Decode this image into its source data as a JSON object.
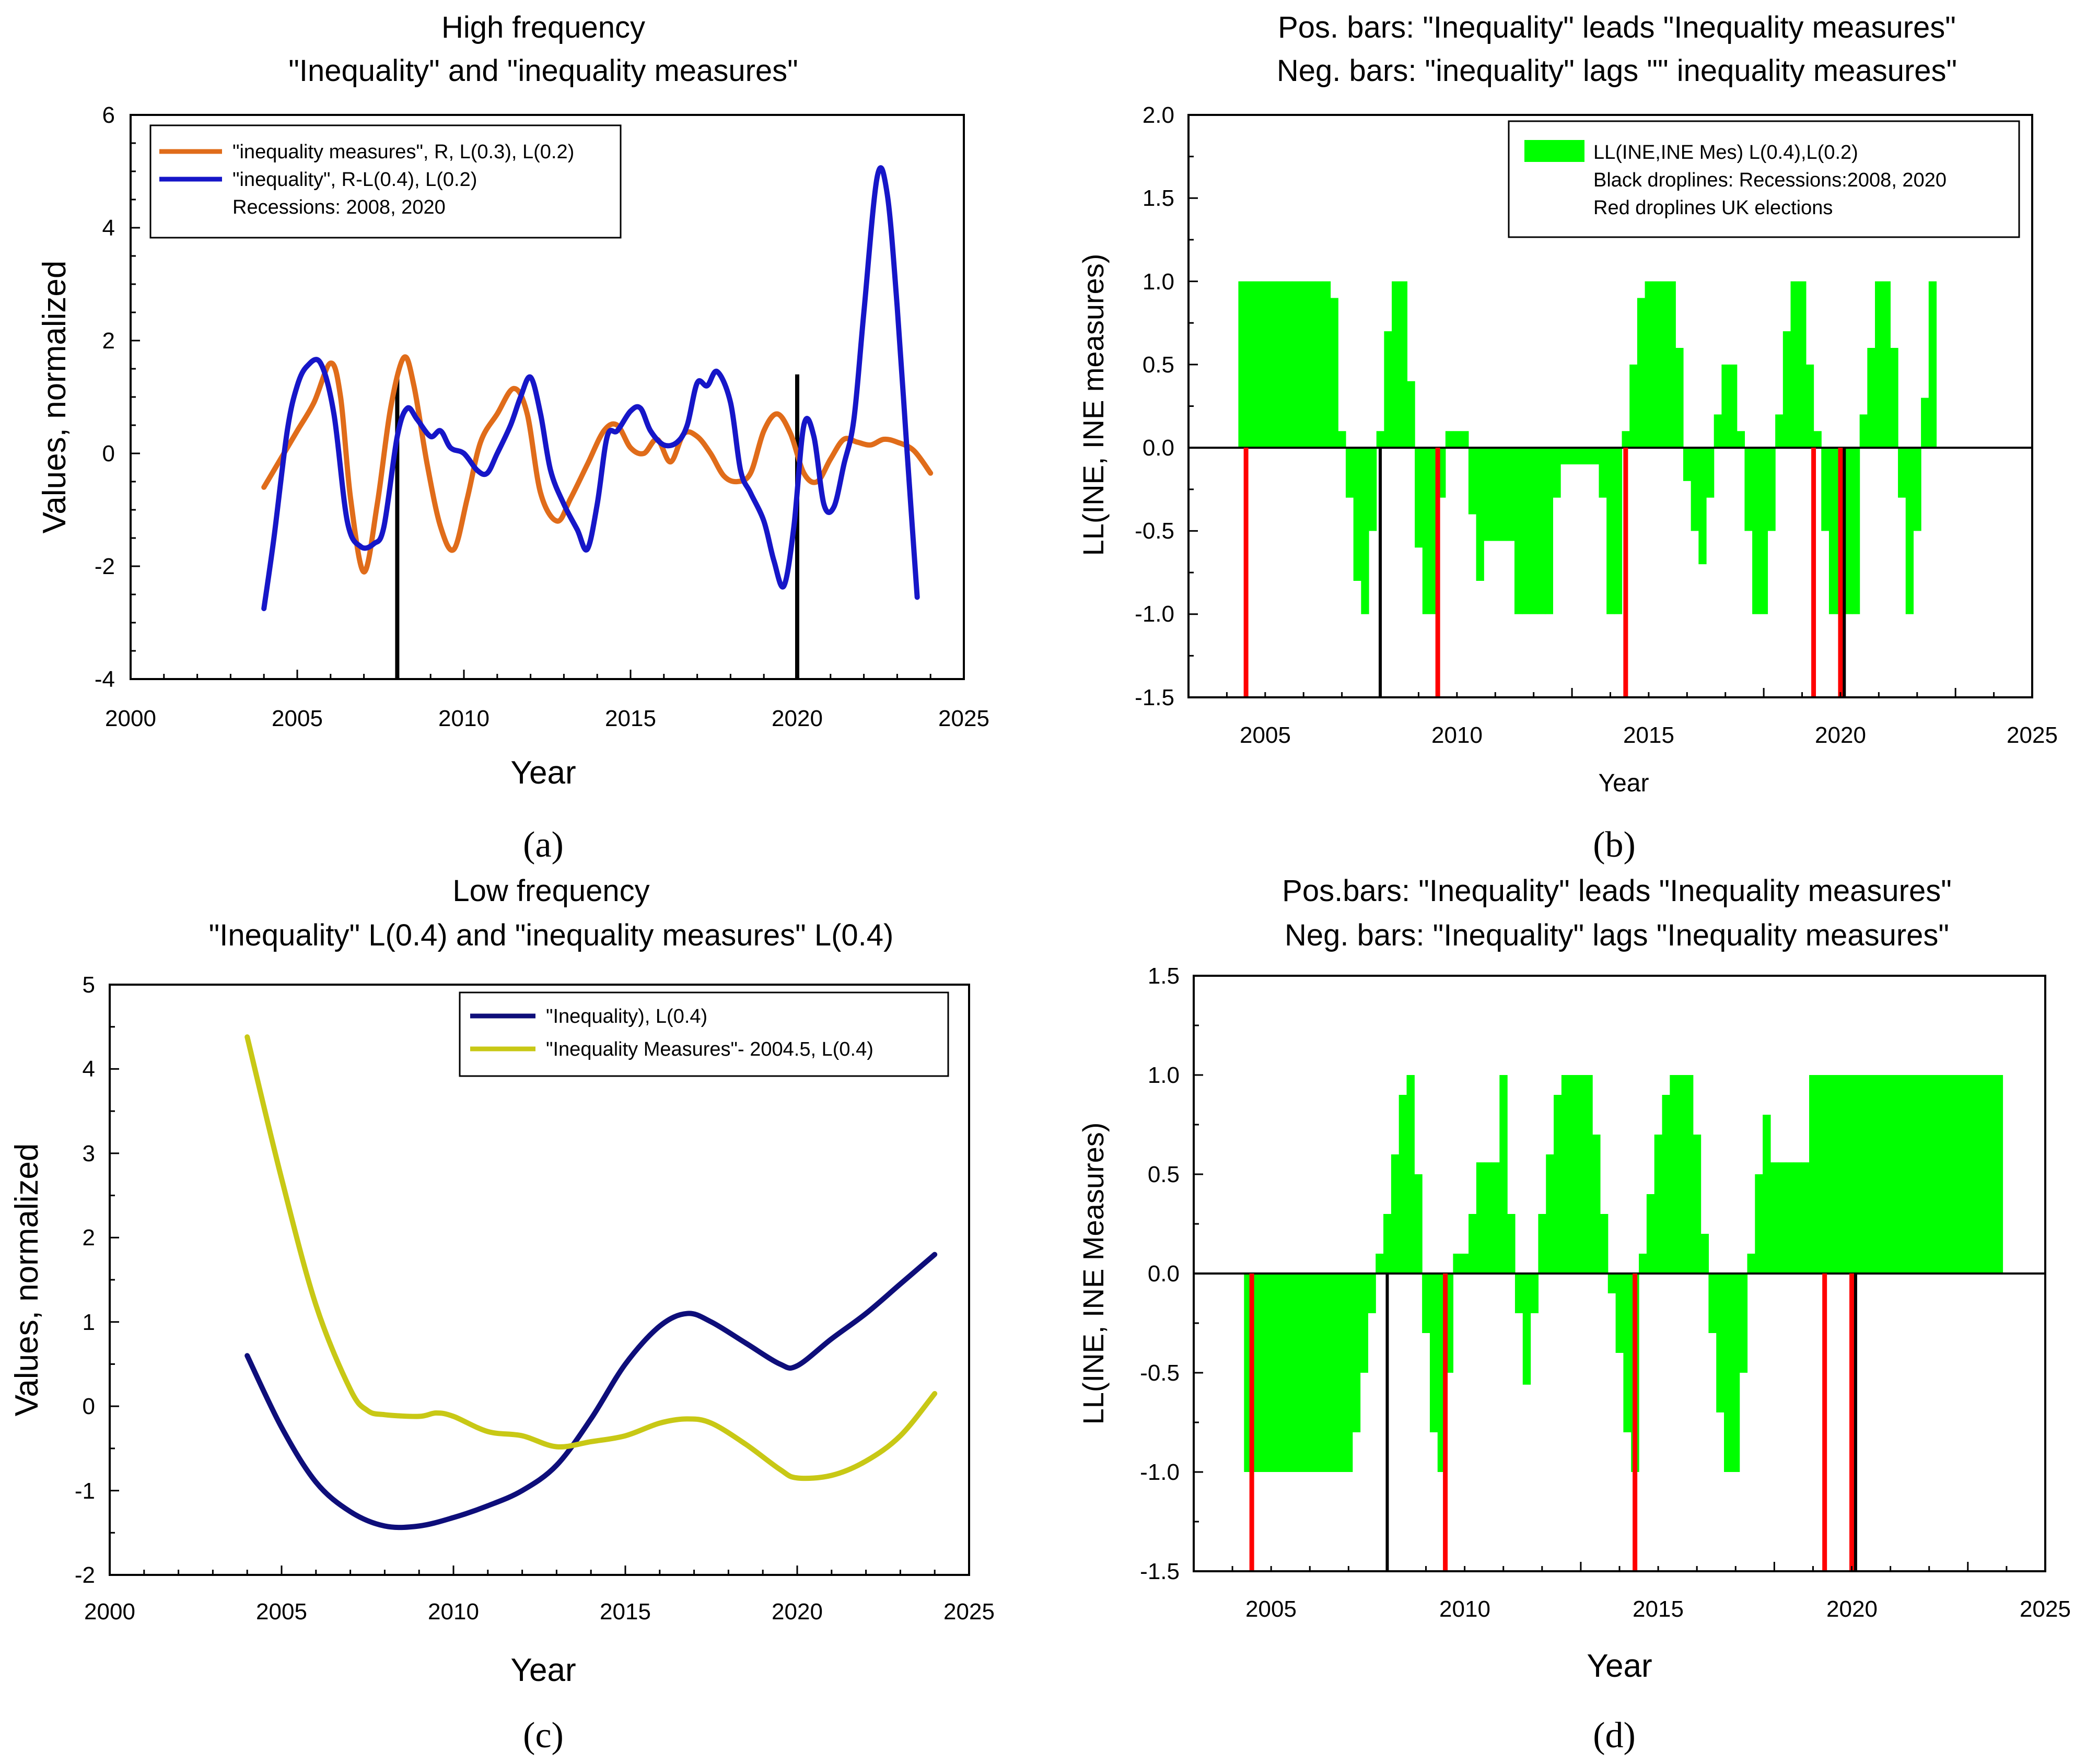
{
  "colors": {
    "inequality_measures_orange": "#E06C1A",
    "inequality_blue": "#1616C8",
    "inequality_navy": "#0E0E7A",
    "measures_yellow": "#C8C815",
    "bar_green": "#00FF00",
    "recession_black": "#000000",
    "election_red": "#FF0000"
  },
  "panels": {
    "a": {
      "label": "(a)",
      "title_line1": "High frequency",
      "title_line2": "\"Inequality\" and \"inequality measures\""
    },
    "b": {
      "label": "(b)",
      "title_line1": "Pos. bars: \"Inequality\" leads \"Inequality measures\"",
      "title_line2": "Neg. bars: \"inequality\" lags \"\" inequality measures\""
    },
    "c": {
      "label": "(c)",
      "title_line1": "Low frequency",
      "title_line2": "\"Inequality\" L(0.4) and \"inequality measures\" L(0.4)"
    },
    "d": {
      "label": "(d)",
      "title_line1": "Pos.bars: \"Inequality\" leads \"Inequality measures\"",
      "title_line2": "Neg. bars: \"Inequality\" lags \"Inequality measures\""
    }
  },
  "chart_data": [
    {
      "id": "a",
      "type": "line",
      "title": "High frequency \"Inequality\" and \"inequality measures\"",
      "xlabel": "Year",
      "ylabel": "Values, normalized",
      "xlim": [
        2000,
        2025
      ],
      "ylim": [
        -4,
        6
      ],
      "xticks": [
        "2000",
        "2005",
        "2010",
        "2015",
        "2020",
        "2025"
      ],
      "yticks": [
        "-4",
        "-2",
        "0",
        "2",
        "4",
        "6"
      ],
      "legend": {
        "position": "top-left",
        "entries": [
          "\"inequality measures\", R, L(0.3), L(0.2)",
          "\"inequality\", R-L(0.4), L(0.2)",
          "Recessions: 2008, 2020"
        ]
      },
      "series": [
        {
          "name": "\"inequality measures\", R, L(0.3), L(0.2)",
          "color": "#E06C1A",
          "x": [
            2004,
            2004.5,
            2005,
            2005.5,
            2006,
            2006.3,
            2006.6,
            2007,
            2007.4,
            2007.8,
            2008.2,
            2008.5,
            2008.9,
            2009.3,
            2009.7,
            2010.1,
            2010.5,
            2011,
            2011.5,
            2011.9,
            2012.3,
            2012.8,
            2013.2,
            2013.7,
            2014.2,
            2014.6,
            2015,
            2015.4,
            2015.8,
            2016.2,
            2016.6,
            2017,
            2017.4,
            2017.8,
            2018.2,
            2018.6,
            2019,
            2019.4,
            2019.8,
            2020.2,
            2020.6,
            2021,
            2021.4,
            2021.8,
            2022.2,
            2022.6,
            2023,
            2023.5,
            2024
          ],
          "y": [
            -0.6,
            -0.1,
            0.4,
            0.9,
            1.6,
            1.0,
            -0.8,
            -2.1,
            -0.9,
            0.8,
            1.7,
            1.2,
            -0.2,
            -1.3,
            -1.7,
            -0.8,
            0.2,
            0.7,
            1.15,
            0.7,
            -0.7,
            -1.2,
            -0.8,
            -0.2,
            0.4,
            0.5,
            0.1,
            0.0,
            0.25,
            -0.15,
            0.35,
            0.3,
            0.0,
            -0.4,
            -0.5,
            -0.35,
            0.4,
            0.7,
            0.35,
            -0.35,
            -0.5,
            -0.1,
            0.25,
            0.2,
            0.15,
            0.25,
            0.2,
            0.05,
            -0.35
          ]
        },
        {
          "name": "\"inequality\", R-L(0.4), L(0.2)",
          "color": "#1616C8",
          "x": [
            2004,
            2004.3,
            2004.7,
            2005,
            2005.3,
            2005.7,
            2006.1,
            2006.5,
            2006.9,
            2007.3,
            2007.6,
            2008,
            2008.3,
            2008.6,
            2009,
            2009.3,
            2009.6,
            2010,
            2010.4,
            2010.7,
            2011,
            2011.4,
            2011.7,
            2012,
            2012.3,
            2012.6,
            2013,
            2013.4,
            2013.7,
            2014,
            2014.3,
            2014.6,
            2015,
            2015.3,
            2015.6,
            2016,
            2016.4,
            2016.7,
            2017,
            2017.3,
            2017.6,
            2018,
            2018.3,
            2018.6,
            2019,
            2019.3,
            2019.6,
            2019.9,
            2020.2,
            2020.5,
            2020.8,
            2021.1,
            2021.4,
            2021.7,
            2022,
            2022.4,
            2022.7,
            2023,
            2023.3,
            2023.6
          ],
          "y": [
            -2.75,
            -1.5,
            0.4,
            1.2,
            1.55,
            1.6,
            0.7,
            -1.2,
            -1.65,
            -1.6,
            -1.3,
            0.3,
            0.8,
            0.6,
            0.3,
            0.4,
            0.1,
            0.0,
            -0.3,
            -0.35,
            0.0,
            0.5,
            1.0,
            1.35,
            0.7,
            -0.3,
            -0.9,
            -1.35,
            -1.7,
            -0.9,
            0.3,
            0.4,
            0.75,
            0.8,
            0.4,
            0.15,
            0.2,
            0.5,
            1.25,
            1.2,
            1.45,
            0.9,
            -0.3,
            -0.7,
            -1.2,
            -1.9,
            -2.35,
            -1.3,
            0.5,
            0.3,
            -0.9,
            -0.95,
            -0.2,
            0.6,
            2.5,
            4.9,
            4.6,
            2.6,
            0.0,
            -2.55
          ]
        }
      ],
      "recessions": [
        2008,
        2020
      ],
      "recession_tops": [
        1.4,
        1.4
      ]
    },
    {
      "id": "b",
      "type": "bar",
      "title": "Pos. bars: \"Inequality\" leads \"Inequality measures\" Neg. bars: \"inequality\" lags \"\" inequality measures\"",
      "xlabel": "Year",
      "ylabel": "LL(INE, INE measures)",
      "xlim": [
        2003,
        2025
      ],
      "ylim": [
        -1.5,
        2.0
      ],
      "xticks": [
        "2005",
        "2010",
        "2015",
        "2020",
        "2025"
      ],
      "yticks": [
        "-1.5",
        "-1.0",
        "-0.5",
        "0.0",
        "0.5",
        "1.0",
        "1.5",
        "2.0"
      ],
      "legend": {
        "position": "top-right",
        "entries": [
          "LL(INE,INE Mes) L(0.4),L(0.2)",
          "Black droplines: Recessions:2008, 2020",
          "Red droplines UK elections"
        ]
      },
      "bar_width_years": 0.2,
      "x": [
        2004.4,
        2004.6,
        2004.8,
        2005.0,
        2005.2,
        2005.4,
        2005.6,
        2005.8,
        2006.0,
        2006.2,
        2006.4,
        2006.6,
        2006.8,
        2007.0,
        2007.2,
        2007.4,
        2007.6,
        2007.8,
        2008.0,
        2008.2,
        2008.4,
        2008.6,
        2008.8,
        2009.0,
        2009.2,
        2009.4,
        2009.6,
        2009.8,
        2010.0,
        2010.2,
        2010.4,
        2010.6,
        2010.8,
        2011.0,
        2011.2,
        2011.4,
        2011.6,
        2011.8,
        2012.0,
        2012.2,
        2012.4,
        2012.6,
        2012.8,
        2013.0,
        2013.2,
        2013.4,
        2013.6,
        2013.8,
        2014.0,
        2014.2,
        2014.4,
        2014.6,
        2014.8,
        2015.0,
        2015.2,
        2015.4,
        2015.6,
        2015.8,
        2016.0,
        2016.2,
        2016.4,
        2016.6,
        2016.8,
        2017.0,
        2017.2,
        2017.4,
        2017.6,
        2017.8,
        2018.0,
        2018.2,
        2018.4,
        2018.6,
        2018.8,
        2019.0,
        2019.2,
        2019.4,
        2019.6,
        2019.8,
        2020.0,
        2020.2,
        2020.4,
        2020.6,
        2020.8,
        2021.0,
        2021.2,
        2021.4,
        2021.6,
        2021.8,
        2022.0,
        2022.2,
        2022.4,
        2022.6,
        2022.8,
        2023.0,
        2023.2,
        2023.4,
        2023.6,
        2023.8
      ],
      "values": [
        1.0,
        1.0,
        1.0,
        1.0,
        1.0,
        1.0,
        1.0,
        1.0,
        1.0,
        1.0,
        1.0,
        1.0,
        0.9,
        0.1,
        -0.3,
        -0.8,
        -1.0,
        -0.5,
        0.1,
        0.7,
        1.0,
        1.0,
        0.4,
        -0.6,
        -1.0,
        -1.0,
        -0.3,
        0.1,
        0.1,
        0.1,
        -0.4,
        -0.8,
        -0.56,
        -0.56,
        -0.56,
        -0.56,
        -1.0,
        -1.0,
        -1.0,
        -1.0,
        -1.0,
        -0.3,
        -0.1,
        -0.1,
        -0.1,
        -0.1,
        -0.1,
        -0.3,
        -1.0,
        -1.0,
        0.1,
        0.5,
        0.9,
        1.0,
        1.0,
        1.0,
        1.0,
        0.6,
        -0.2,
        -0.5,
        -0.7,
        -0.3,
        0.2,
        0.5,
        0.5,
        0.1,
        -0.5,
        -1.0,
        -1.0,
        -0.5,
        0.2,
        0.7,
        1.0,
        1.0,
        0.5,
        0.1,
        -0.5,
        -1.0,
        -1.0,
        -1.0,
        -1.0,
        0.2,
        0.6,
        1.0,
        1.0,
        0.6,
        -0.3,
        -1.0,
        -0.5,
        0.3,
        1.0,
        0.0,
        0.0,
        0.0,
        0.0,
        0.0,
        0.0,
        0.0
      ],
      "recessions": [
        2008,
        2020.1
      ],
      "elections": [
        2004.5,
        2009.5,
        2014.4,
        2019.3,
        2020.0
      ]
    },
    {
      "id": "c",
      "type": "line",
      "title": "Low frequency \"Inequality\" L(0.4) and \"inequality measures\" L(0.4)",
      "xlabel": "Year",
      "ylabel": "Values, normalized",
      "xlim": [
        2000,
        2025
      ],
      "ylim": [
        -2,
        5
      ],
      "xticks": [
        "2000",
        "2005",
        "2010",
        "2015",
        "2020",
        "2025"
      ],
      "yticks": [
        "-2",
        "-1",
        "0",
        "1",
        "2",
        "3",
        "4",
        "5"
      ],
      "legend": {
        "position": "top-right",
        "entries": [
          "\"Inequality), L(0.4)",
          "\"Inequality Measures\"- 2004.5, L(0.4)"
        ]
      },
      "series": [
        {
          "name": "\"Inequality), L(0.4)",
          "color": "#0E0E7A",
          "x": [
            2004,
            2005,
            2006,
            2007,
            2008,
            2009,
            2010,
            2011,
            2012,
            2013,
            2014,
            2015,
            2016,
            2016.8,
            2017.5,
            2018.5,
            2019.5,
            2020,
            2021,
            2022,
            2023,
            2024
          ],
          "y": [
            0.6,
            -0.25,
            -0.9,
            -1.25,
            -1.42,
            -1.42,
            -1.32,
            -1.18,
            -1.0,
            -0.7,
            -0.15,
            0.5,
            0.95,
            1.1,
            1.0,
            0.75,
            0.5,
            0.48,
            0.8,
            1.1,
            1.45,
            1.8
          ]
        },
        {
          "name": "\"Inequality Measures\"- 2004.5, L(0.4)",
          "color": "#C8C815",
          "x": [
            2004,
            2005,
            2006,
            2007,
            2007.5,
            2008,
            2009,
            2009.5,
            2010,
            2011,
            2012,
            2013,
            2014,
            2015,
            2016,
            2016.8,
            2017.5,
            2018.5,
            2019.5,
            2020,
            2021,
            2022,
            2023,
            2024
          ],
          "y": [
            4.38,
            2.7,
            1.2,
            0.2,
            -0.05,
            -0.1,
            -0.12,
            -0.08,
            -0.12,
            -0.3,
            -0.35,
            -0.48,
            -0.42,
            -0.35,
            -0.2,
            -0.15,
            -0.2,
            -0.45,
            -0.75,
            -0.85,
            -0.82,
            -0.65,
            -0.35,
            0.15
          ]
        }
      ]
    },
    {
      "id": "d",
      "type": "bar",
      "title": "Pos.bars: \"Inequality\" leads \"Inequality measures\" Neg. bars: \"Inequality\" lags \"Inequality measures\"",
      "xlabel": "Year",
      "ylabel": "LL(INE, INE Measures)",
      "xlim": [
        2003,
        2025
      ],
      "ylim": [
        -1.5,
        1.5
      ],
      "xticks": [
        "2005",
        "2010",
        "2015",
        "2020",
        "2025"
      ],
      "yticks": [
        "-1.5",
        "-1.0",
        "-0.5",
        "0.0",
        "0.5",
        "1.0",
        "1.5"
      ],
      "bar_width_years": 0.2,
      "x": [
        2004.4,
        2004.6,
        2004.8,
        2005.0,
        2005.2,
        2005.4,
        2005.6,
        2005.8,
        2006.0,
        2006.2,
        2006.4,
        2006.6,
        2006.8,
        2007.0,
        2007.2,
        2007.4,
        2007.6,
        2007.8,
        2008.0,
        2008.2,
        2008.4,
        2008.6,
        2008.8,
        2009.0,
        2009.2,
        2009.4,
        2009.6,
        2009.8,
        2010.0,
        2010.2,
        2010.4,
        2010.6,
        2010.8,
        2011.0,
        2011.2,
        2011.4,
        2011.6,
        2011.8,
        2012.0,
        2012.2,
        2012.4,
        2012.6,
        2012.8,
        2013.0,
        2013.2,
        2013.4,
        2013.6,
        2013.8,
        2014.0,
        2014.2,
        2014.4,
        2014.6,
        2014.8,
        2015.0,
        2015.2,
        2015.4,
        2015.6,
        2015.8,
        2016.0,
        2016.2,
        2016.4,
        2016.6,
        2016.8,
        2017.0,
        2017.2,
        2017.4,
        2017.6,
        2017.8,
        2018.0,
        2018.2,
        2018.4,
        2018.6,
        2018.8,
        2019.0,
        2019.2,
        2019.4,
        2019.6,
        2019.8,
        2020.0,
        2020.2,
        2020.4,
        2020.6,
        2020.8,
        2021.0,
        2021.2,
        2021.4,
        2021.6,
        2021.8,
        2022.0,
        2022.2,
        2022.4,
        2022.6,
        2022.8,
        2023.0,
        2023.2,
        2023.4,
        2023.6,
        2023.8
      ],
      "values": [
        -1.0,
        -1.0,
        -1.0,
        -1.0,
        -1.0,
        -1.0,
        -1.0,
        -1.0,
        -1.0,
        -1.0,
        -1.0,
        -1.0,
        -1.0,
        -1.0,
        -0.8,
        -0.5,
        -0.2,
        0.1,
        0.3,
        0.6,
        0.9,
        1.0,
        0.5,
        -0.3,
        -0.8,
        -1.0,
        -0.5,
        0.1,
        0.1,
        0.3,
        0.56,
        0.56,
        0.56,
        1.0,
        0.3,
        -0.2,
        -0.56,
        -0.2,
        0.3,
        0.6,
        0.9,
        1.0,
        1.0,
        1.0,
        1.0,
        0.7,
        0.3,
        -0.1,
        -0.4,
        -0.8,
        -1.0,
        0.1,
        0.4,
        0.7,
        0.9,
        1.0,
        1.0,
        1.0,
        0.7,
        0.2,
        -0.3,
        -0.7,
        -1.0,
        -1.0,
        -0.5,
        0.1,
        0.5,
        0.8,
        0.56,
        0.56,
        0.56,
        0.56,
        0.56,
        1.0,
        1.0,
        1.0,
        1.0,
        1.0,
        1.0,
        1.0,
        1.0,
        1.0,
        1.0,
        1.0,
        1.0,
        1.0,
        1.0,
        1.0,
        1.0,
        1.0,
        1.0,
        1.0,
        1.0,
        1.0,
        1.0,
        1.0,
        1.0,
        1.0
      ],
      "recessions": [
        2008,
        2020.1
      ],
      "elections": [
        2004.5,
        2009.5,
        2014.4,
        2019.3,
        2020.0
      ]
    }
  ]
}
